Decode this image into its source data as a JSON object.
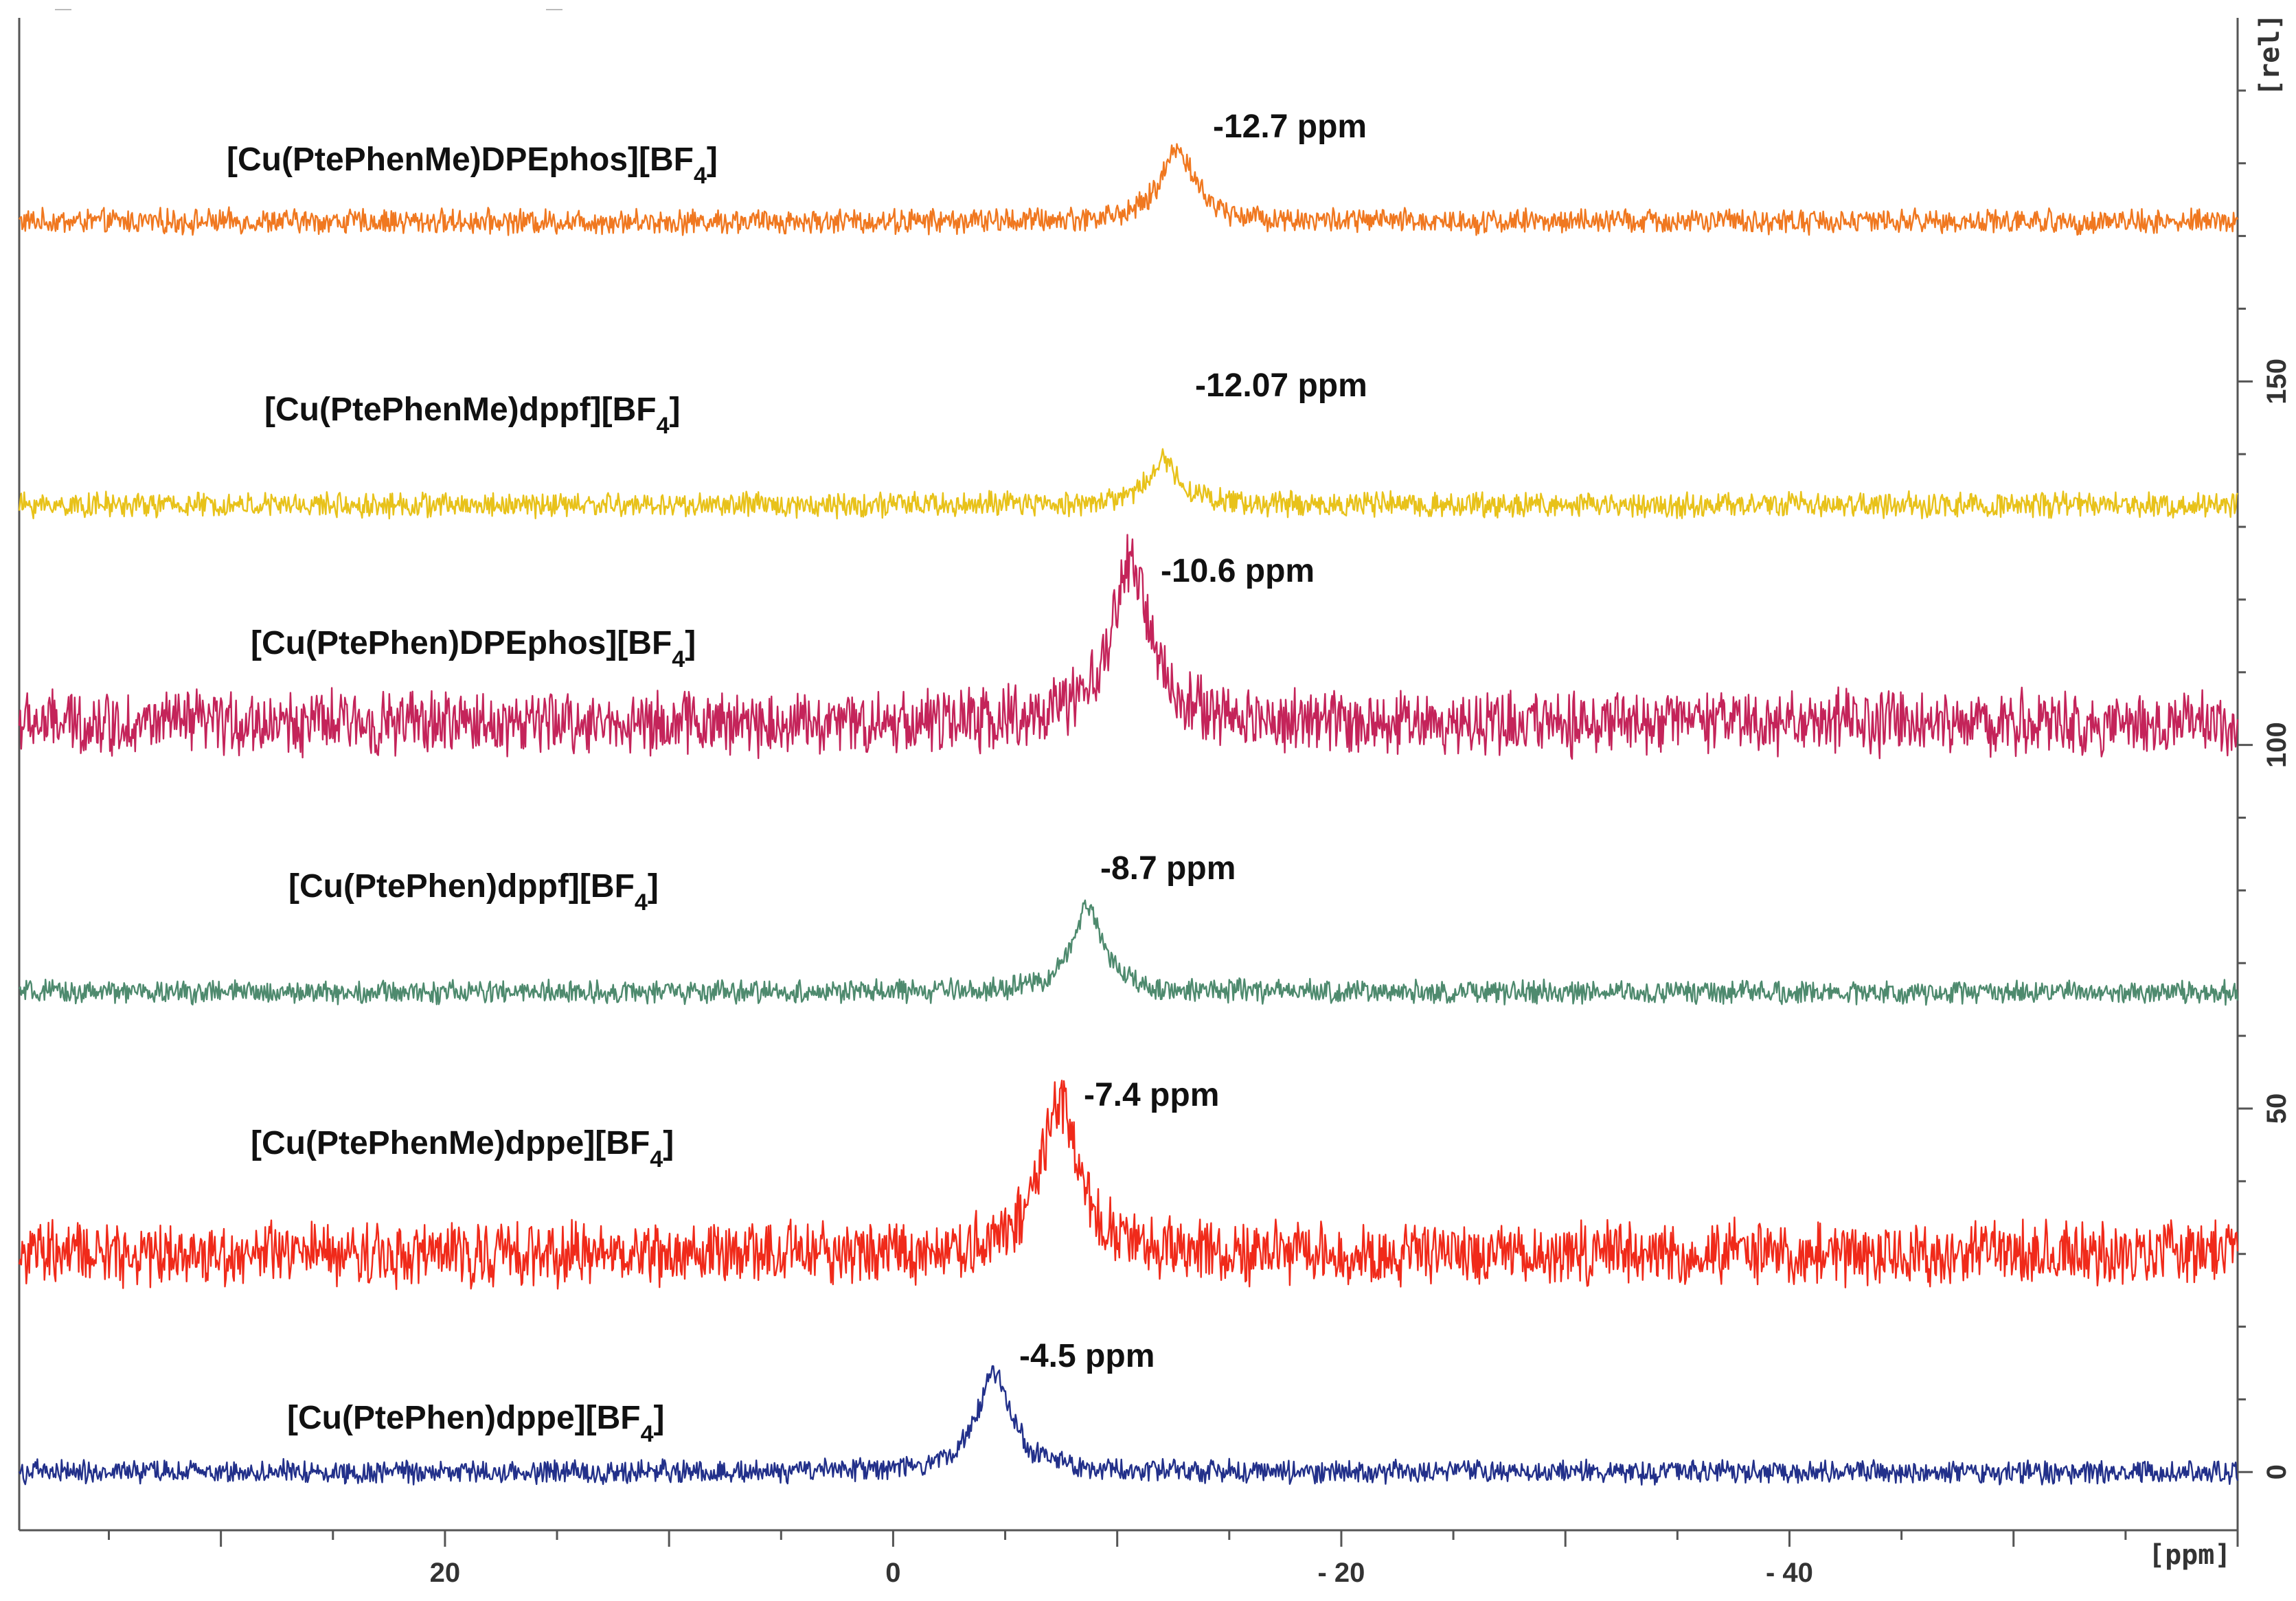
{
  "chart_data": {
    "type": "line",
    "title": "",
    "xlabel": "[ppm]",
    "ylabel": "[rel]",
    "x_reversed": true,
    "xlim": [
      39,
      -60
    ],
    "ylim": [
      -8,
      200
    ],
    "x_ticks": [
      20,
      0,
      -20,
      -40
    ],
    "x_tick_labels": [
      "20",
      "0",
      "- 20",
      "- 40"
    ],
    "y_ticks": [
      0,
      50,
      100,
      150
    ],
    "y_tick_labels": [
      "0",
      "50",
      "100",
      "150"
    ],
    "grid": false,
    "series": [
      {
        "name": "[Cu(PtePhenMe)DPEphos][BF",
        "name_sub": "4",
        "name_end": "]",
        "color": "#f07820",
        "baseline": 172,
        "peak_ppm": -12.7,
        "peak_height": 10,
        "width": 0.9,
        "noise": 1.4,
        "peak_label": "-12.7 ppm"
      },
      {
        "name": "[Cu(PtePhenMe)dppf][BF",
        "name_sub": "4",
        "name_end": "]",
        "color": "#e8c21a",
        "baseline": 133,
        "peak_ppm": -12.07,
        "peak_height": 6,
        "width": 0.9,
        "noise": 1.4,
        "peak_label": "-12.07 ppm"
      },
      {
        "name": "[Cu(PtePhen)DPEphos][BF",
        "name_sub": "4",
        "name_end": "]",
        "color": "#c4245a",
        "baseline": 103,
        "peak_ppm": -10.6,
        "peak_height": 22,
        "width": 1.0,
        "noise": 3.6,
        "peak_label": "-10.6 ppm"
      },
      {
        "name": "[Cu(PtePhen)dppf][BF",
        "name_sub": "4",
        "name_end": "]",
        "color": "#4e8a6e",
        "baseline": 66,
        "peak_ppm": -8.7,
        "peak_height": 12,
        "width": 0.8,
        "noise": 1.3,
        "peak_label": "-8.7 ppm"
      },
      {
        "name": "[Cu(PtePhenMe)dppe][BF",
        "name_sub": "4",
        "name_end": "]",
        "color": "#f02a1a",
        "baseline": 30,
        "peak_ppm": -7.4,
        "peak_height": 21,
        "width": 1.0,
        "noise": 3.6,
        "peak_label": "-7.4 ppm"
      },
      {
        "name": "[Cu(PtePhen)dppe][BF",
        "name_sub": "4",
        "name_end": "]",
        "color": "#22308a",
        "baseline": 0,
        "peak_ppm": -4.5,
        "peak_height": 14,
        "width": 0.9,
        "noise": 1.3,
        "peak_label": "-4.5 ppm"
      }
    ]
  }
}
